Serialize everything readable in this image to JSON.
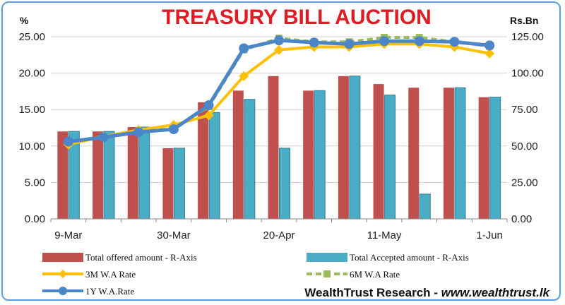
{
  "chart_data": {
    "type": "bar+line",
    "title": "TREASURY BILL AUCTION",
    "left_axis_unit": "%",
    "right_axis_unit": "Rs.Bn",
    "left_ylim": [
      0,
      25
    ],
    "right_ylim": [
      0,
      125
    ],
    "left_ticks": [
      "0.00",
      "5.00",
      "10.00",
      "15.00",
      "20.00",
      "25.00"
    ],
    "right_ticks": [
      "0.00",
      "25.00",
      "50.00",
      "75.00",
      "100.00",
      "125.00"
    ],
    "x_tick_labels": [
      {
        "index": 0,
        "label": "9-Mar"
      },
      {
        "index": 3,
        "label": "30-Mar"
      },
      {
        "index": 6,
        "label": "20-Apr"
      },
      {
        "index": 9,
        "label": "11-May"
      },
      {
        "index": 12,
        "label": "1-Jun"
      }
    ],
    "grid": true,
    "legend_position": "bottom",
    "categories_count": 13,
    "series": [
      {
        "name": "Total offered amount - R-Axis",
        "kind": "bar",
        "axis": "right",
        "color": "#c0504d",
        "values": [
          60,
          60,
          63,
          48.5,
          80,
          88,
          98,
          88,
          98,
          92.5,
          90,
          90,
          83.5
        ]
      },
      {
        "name": "Total Accepted amount - R-Axis",
        "kind": "bar",
        "axis": "right",
        "color": "#4bacc6",
        "values": [
          60,
          60,
          63,
          48.5,
          73,
          82,
          48.5,
          88,
          98,
          85,
          17,
          90,
          83.5
        ]
      },
      {
        "name": "3M W.A Rate",
        "kind": "line",
        "axis": "left",
        "color": "#ffc000",
        "marker": "diamond",
        "values": [
          10.2,
          11.3,
          12.2,
          12.9,
          14.2,
          19.6,
          23.2,
          23.6,
          23.6,
          24.0,
          24.0,
          23.6,
          22.7
        ]
      },
      {
        "name": "6M W.A Rate",
        "kind": "line",
        "axis": "left",
        "color": "#9bbb59",
        "marker": "square",
        "dash": true,
        "values": [
          10.6,
          11.3,
          12.0,
          12.4,
          15.4,
          23.2,
          24.8,
          24.3,
          24.3,
          24.9,
          24.9,
          24.3,
          23.7
        ]
      },
      {
        "name": "1Y W.A.Rate",
        "kind": "line",
        "axis": "left",
        "color": "#4a86c8",
        "marker": "circle",
        "values": [
          10.6,
          11.2,
          11.9,
          12.3,
          15.6,
          23.4,
          24.5,
          24.2,
          24.0,
          24.4,
          24.4,
          24.3,
          23.8
        ]
      }
    ]
  },
  "source": {
    "label": "WealthTrust Research - ",
    "url": "www.wealthtrust.lk"
  }
}
